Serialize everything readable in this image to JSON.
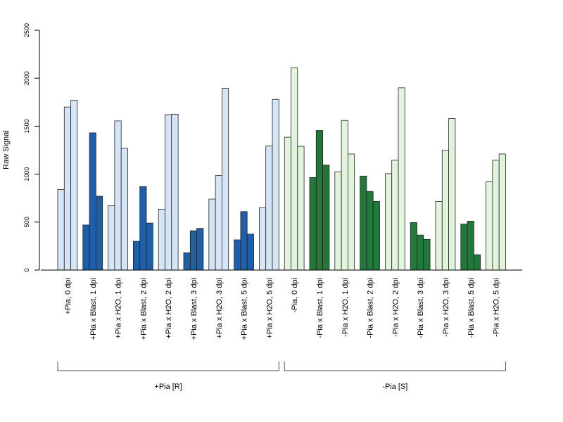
{
  "chart_data": {
    "type": "bar",
    "ylabel": "Raw Signal",
    "ylim": [
      0,
      2500
    ],
    "yticks": [
      0,
      500,
      1000,
      1500,
      2000,
      2500
    ],
    "grid": false,
    "categories": [
      "+Pia, 0 dpi",
      "+Pia x Blast, 1 dpi",
      "+Pia x H2O, 1 dpi",
      "+Pia x Blast, 2 dpi",
      "+Pia x H2O, 2 dpi",
      "+Pia x Blast, 3 dpi",
      "+Pia x H2O, 3 dpi",
      "+Pia x Blast, 5 dpi",
      "+Pia x H2O, 5 dpi",
      "-Pia, 0 dpi",
      "-Pia x Blast, 1 dpi",
      "-Pia x H2O, 1 dpi",
      "-Pia x Blast, 2 dpi",
      "-Pia x H2O, 2 dpi",
      "-Pia x Blast, 3 dpi",
      "-Pia x H2O, 3 dpi",
      "-Pia x Blast, 5 dpi",
      "-Pia x H2O, 5 dpi"
    ],
    "replicates": [
      [
        840,
        1700,
        1770
      ],
      [
        470,
        1430,
        770
      ],
      [
        670,
        1555,
        1270
      ],
      [
        300,
        870,
        490
      ],
      [
        635,
        1620,
        1625
      ],
      [
        180,
        410,
        435
      ],
      [
        740,
        985,
        1895
      ],
      [
        315,
        610,
        375
      ],
      [
        650,
        1295,
        1780
      ],
      [
        1385,
        2110,
        1290
      ],
      [
        965,
        1455,
        1095
      ],
      [
        1025,
        1560,
        1210
      ],
      [
        980,
        820,
        715
      ],
      [
        1005,
        1145,
        1900
      ],
      [
        495,
        365,
        320
      ],
      [
        715,
        1250,
        1580
      ],
      [
        480,
        510,
        160
      ],
      [
        920,
        1145,
        1210
      ]
    ],
    "bar_colors": [
      "#d6e5f5",
      "#1f5fa8",
      "#d6e5f5",
      "#1f5fa8",
      "#d6e5f5",
      "#1f5fa8",
      "#d6e5f5",
      "#1f5fa8",
      "#d6e5f5",
      "#e3f4dd",
      "#22773a",
      "#e3f4dd",
      "#22773a",
      "#e3f4dd",
      "#22773a",
      "#e3f4dd",
      "#22773a",
      "#e3f4dd"
    ],
    "groups": [
      {
        "label": "+Pia [R]",
        "first": 0,
        "last": 8
      },
      {
        "label": "-Pia [S]",
        "first": 9,
        "last": 17
      }
    ]
  }
}
